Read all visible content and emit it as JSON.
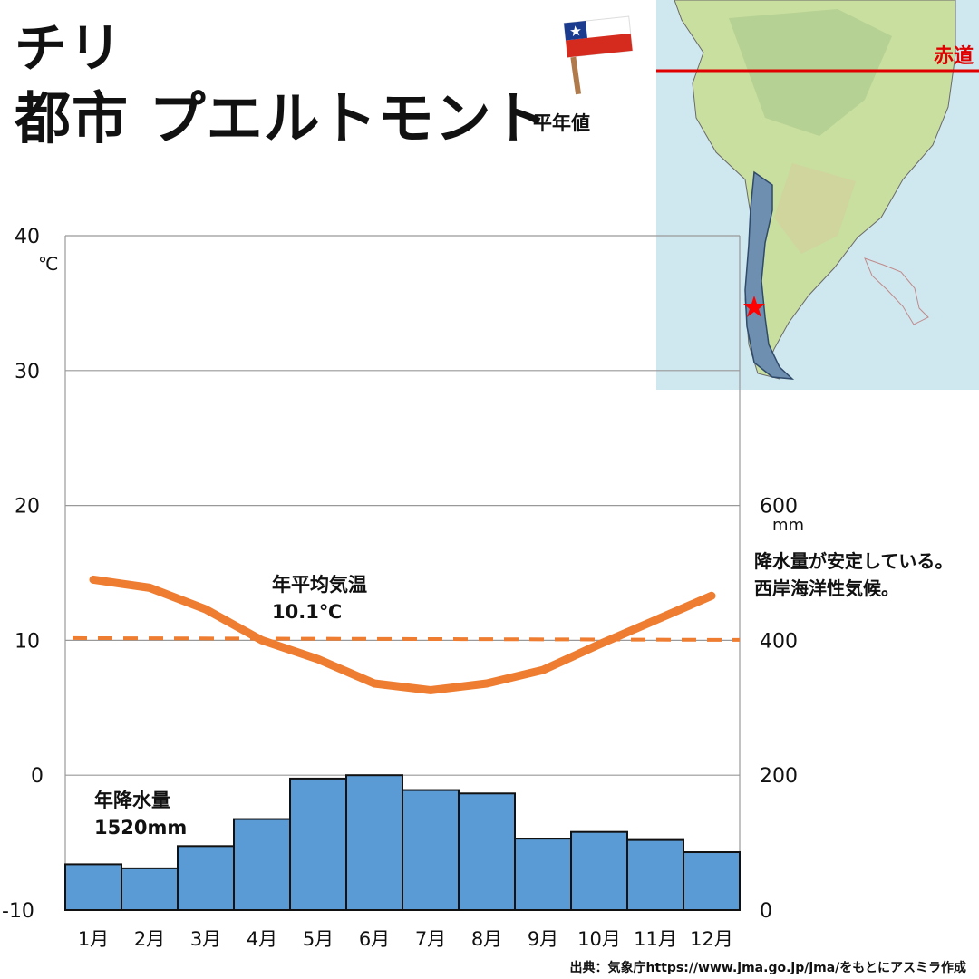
{
  "header": {
    "country": "チリ",
    "city": "都市 プエルトモント",
    "subtitle": "平年値"
  },
  "map": {
    "equator_label": "赤道"
  },
  "annotations": {
    "avg_temp_label": "年平均気温",
    "avg_temp_value": "10.1℃",
    "annual_precip_label": "年降水量",
    "annual_precip_value": "1520mm",
    "note_line1": "降水量が安定している。",
    "note_line2": "西岸海洋性気候。"
  },
  "footer": {
    "source": "出典：気象庁https://www.jma.go.jp/jma/をもとにアスミラ作成"
  },
  "colors": {
    "temperature": "#ee7d31",
    "precipitation": "#5b9bd5",
    "equator": "#e00000",
    "chile": "#6f8fb0",
    "marker": "#ff0000"
  },
  "chart_data": {
    "type": "bar+line",
    "categories": [
      "1月",
      "2月",
      "3月",
      "4月",
      "5月",
      "6月",
      "7月",
      "8月",
      "9月",
      "10月",
      "11月",
      "12月"
    ],
    "series": [
      {
        "type": "line",
        "axis": "left",
        "values": [
          14.5,
          13.9,
          12.3,
          10.0,
          8.6,
          6.8,
          6.3,
          6.8,
          7.8,
          9.7,
          11.5,
          13.3
        ]
      },
      {
        "type": "bar",
        "axis": "right",
        "values": [
          68,
          62,
          95,
          135,
          195,
          200,
          178,
          173,
          106,
          116,
          104,
          86
        ]
      },
      {
        "type": "reference_line",
        "axis": "left",
        "value": 10.1
      }
    ],
    "y_left": {
      "unit": "℃",
      "min": -10,
      "max": 40,
      "ticks": [
        40,
        30,
        20,
        10,
        0,
        -10
      ]
    },
    "y_right": {
      "unit": "mm",
      "min": 0,
      "max": 600,
      "ticks": [
        600,
        400,
        200,
        0
      ]
    },
    "grid": true
  }
}
